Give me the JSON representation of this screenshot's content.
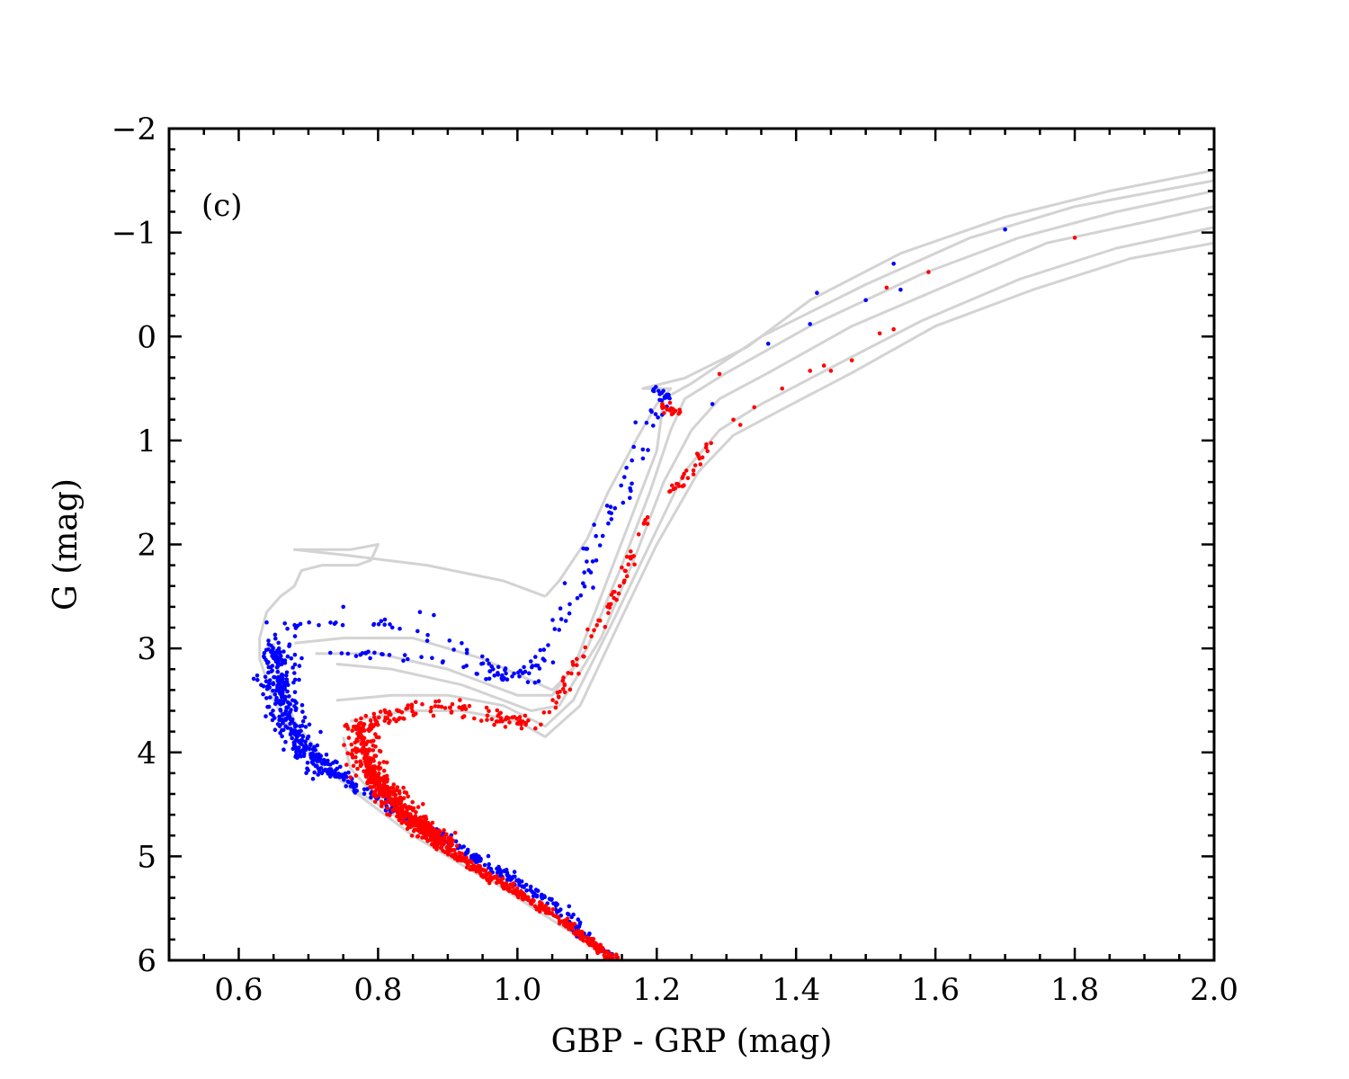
{
  "chart_data": {
    "type": "scatter",
    "panel_label": "(c)",
    "xlabel": "GBP - GRP (mag)",
    "ylabel": "G (mag)",
    "xlim": [
      0.5,
      2.0
    ],
    "ylim": [
      6,
      -2
    ],
    "y_inverted": true,
    "x_major_ticks": [
      0.6,
      0.8,
      1.0,
      1.2,
      1.4,
      1.6,
      1.8,
      2.0
    ],
    "x_tick_labels": [
      "0.6",
      "0.8",
      "1.0",
      "1.2",
      "1.4",
      "1.6",
      "1.8",
      "2.0"
    ],
    "y_major_ticks": [
      -2,
      -1,
      0,
      1,
      2,
      3,
      4,
      5,
      6
    ],
    "y_tick_labels": [
      "−2",
      "−1",
      "0",
      "1",
      "2",
      "3",
      "4",
      "5",
      "6"
    ],
    "grid": false,
    "colors": {
      "blue": "#0000ff",
      "red": "#ff0000",
      "isochrone": "#d3d3d3",
      "axes": "#000000"
    },
    "isochrones": [
      {
        "name": "isochrone-1",
        "points": [
          [
            1.04,
            2.5
          ],
          [
            0.98,
            2.35
          ],
          [
            0.87,
            2.2
          ],
          [
            0.75,
            2.1
          ],
          [
            0.68,
            2.05
          ],
          [
            0.76,
            2.05
          ],
          [
            0.8,
            2.0
          ],
          [
            0.79,
            2.15
          ],
          [
            0.77,
            2.2
          ],
          [
            0.72,
            2.2
          ],
          [
            0.69,
            2.25
          ],
          [
            0.68,
            2.4
          ],
          [
            0.66,
            2.5
          ],
          [
            0.64,
            2.65
          ],
          [
            0.63,
            2.9
          ],
          [
            0.63,
            3.1
          ],
          [
            0.65,
            3.5
          ],
          [
            0.68,
            3.85
          ],
          [
            0.73,
            4.2
          ],
          [
            0.8,
            4.5
          ],
          [
            0.9,
            4.95
          ],
          [
            1.0,
            5.4
          ],
          [
            1.14,
            6.0
          ]
        ]
      },
      {
        "name": "isochrone-2",
        "points": [
          [
            1.04,
            2.5
          ],
          [
            1.06,
            2.35
          ],
          [
            1.08,
            2.15
          ],
          [
            1.1,
            1.95
          ],
          [
            1.13,
            1.5
          ],
          [
            1.17,
            1.0
          ],
          [
            1.2,
            0.65
          ],
          [
            1.22,
            0.5
          ],
          [
            1.18,
            0.5
          ],
          [
            1.24,
            0.4
          ],
          [
            1.33,
            0.1
          ],
          [
            1.42,
            -0.35
          ],
          [
            1.55,
            -0.8
          ],
          [
            1.7,
            -1.15
          ],
          [
            1.85,
            -1.4
          ],
          [
            2.0,
            -1.6
          ]
        ]
      },
      {
        "name": "isochrone-3",
        "points": [
          [
            0.65,
            2.95
          ],
          [
            0.66,
            3.3
          ],
          [
            0.68,
            3.7
          ],
          [
            0.72,
            4.05
          ],
          [
            0.76,
            4.35
          ],
          [
            0.85,
            4.8
          ],
          [
            0.95,
            5.2
          ]
        ]
      },
      {
        "name": "isochrone-4",
        "points": [
          [
            0.68,
            2.95
          ],
          [
            0.75,
            2.9
          ],
          [
            0.85,
            2.9
          ],
          [
            0.95,
            3.1
          ],
          [
            1.05,
            3.4
          ],
          [
            1.08,
            3.2
          ],
          [
            1.12,
            2.5
          ],
          [
            1.16,
            1.8
          ],
          [
            1.2,
            1.1
          ],
          [
            1.21,
            0.6
          ],
          [
            1.25,
            0.45
          ],
          [
            1.35,
            0.0
          ],
          [
            1.5,
            -0.5
          ],
          [
            1.65,
            -0.95
          ],
          [
            1.8,
            -1.25
          ],
          [
            2.0,
            -1.5
          ]
        ]
      },
      {
        "name": "isochrone-5",
        "points": [
          [
            0.71,
            3.05
          ],
          [
            0.8,
            3.05
          ],
          [
            0.9,
            3.2
          ],
          [
            1.0,
            3.45
          ],
          [
            1.05,
            3.45
          ],
          [
            1.1,
            3.0
          ],
          [
            1.15,
            2.2
          ],
          [
            1.19,
            1.5
          ],
          [
            1.22,
            0.9
          ],
          [
            1.24,
            0.6
          ],
          [
            1.3,
            0.35
          ],
          [
            1.42,
            -0.1
          ],
          [
            1.58,
            -0.6
          ],
          [
            1.72,
            -0.95
          ],
          [
            1.86,
            -1.2
          ],
          [
            2.0,
            -1.4
          ]
        ]
      },
      {
        "name": "isochrone-6",
        "points": [
          [
            0.74,
            3.15
          ],
          [
            0.82,
            3.2
          ],
          [
            0.92,
            3.35
          ],
          [
            1.02,
            3.6
          ],
          [
            1.06,
            3.55
          ],
          [
            1.12,
            2.9
          ],
          [
            1.17,
            2.1
          ],
          [
            1.21,
            1.4
          ],
          [
            1.25,
            0.9
          ],
          [
            1.29,
            0.6
          ],
          [
            1.36,
            0.35
          ],
          [
            1.48,
            -0.1
          ],
          [
            1.62,
            -0.5
          ],
          [
            1.76,
            -0.9
          ],
          [
            1.9,
            -1.1
          ],
          [
            2.0,
            -1.25
          ]
        ]
      },
      {
        "name": "isochrone-7",
        "points": [
          [
            0.74,
            3.5
          ],
          [
            0.82,
            3.45
          ],
          [
            0.9,
            3.45
          ],
          [
            0.98,
            3.55
          ],
          [
            1.04,
            3.75
          ],
          [
            1.08,
            3.5
          ],
          [
            1.14,
            2.7
          ],
          [
            1.19,
            2.0
          ],
          [
            1.24,
            1.3
          ],
          [
            1.29,
            0.9
          ],
          [
            1.35,
            0.65
          ],
          [
            1.45,
            0.3
          ],
          [
            1.58,
            -0.15
          ],
          [
            1.72,
            -0.55
          ],
          [
            1.86,
            -0.85
          ],
          [
            2.0,
            -1.05
          ]
        ]
      },
      {
        "name": "isochrone-8",
        "points": [
          [
            0.76,
            3.7
          ],
          [
            0.84,
            3.6
          ],
          [
            0.92,
            3.6
          ],
          [
            1.0,
            3.7
          ],
          [
            1.04,
            3.85
          ],
          [
            1.09,
            3.55
          ],
          [
            1.15,
            2.7
          ],
          [
            1.2,
            2.0
          ],
          [
            1.26,
            1.3
          ],
          [
            1.31,
            0.95
          ],
          [
            1.38,
            0.7
          ],
          [
            1.48,
            0.35
          ],
          [
            1.6,
            -0.1
          ],
          [
            1.74,
            -0.45
          ],
          [
            1.88,
            -0.75
          ],
          [
            2.0,
            -0.9
          ]
        ]
      },
      {
        "name": "isochrone-9",
        "points": [
          [
            0.75,
            3.85
          ],
          [
            0.76,
            4.15
          ],
          [
            0.8,
            4.45
          ],
          [
            0.88,
            4.85
          ],
          [
            0.98,
            5.25
          ],
          [
            1.06,
            5.6
          ]
        ]
      }
    ],
    "series": [
      {
        "name": "blue-stars",
        "color": "#0000ff",
        "paths": [
          {
            "n": 360,
            "spread": 0.006,
            "points": [
              [
                0.655,
                3.0
              ],
              [
                0.66,
                3.4
              ],
              [
                0.67,
                3.7
              ],
              [
                0.7,
                4.0
              ],
              [
                0.76,
                4.3
              ],
              [
                0.85,
                4.65
              ],
              [
                0.95,
                5.05
              ],
              [
                1.05,
                5.45
              ],
              [
                1.14,
                6.0
              ]
            ]
          },
          {
            "n": 260,
            "spread": 0.014,
            "points": [
              [
                0.655,
                2.9
              ],
              [
                0.658,
                3.3
              ],
              [
                0.665,
                3.6
              ],
              [
                0.69,
                3.95
              ],
              [
                0.74,
                4.25
              ]
            ]
          },
          {
            "n": 55,
            "spread": 0.008,
            "points": [
              [
                0.66,
                2.8
              ],
              [
                0.72,
                2.75
              ],
              [
                0.8,
                2.75
              ],
              [
                0.86,
                2.85
              ],
              [
                0.9,
                2.95
              ],
              [
                0.96,
                3.15
              ],
              [
                1.0,
                3.25
              ],
              [
                1.03,
                3.15
              ],
              [
                1.04,
                2.95
              ]
            ]
          },
          {
            "n": 45,
            "spread": 0.009,
            "points": [
              [
                0.68,
                3.1
              ],
              [
                0.75,
                3.05
              ],
              [
                0.82,
                3.05
              ],
              [
                0.9,
                3.15
              ],
              [
                0.98,
                3.3
              ],
              [
                1.03,
                3.3
              ],
              [
                1.06,
                3.1
              ]
            ]
          },
          {
            "n": 40,
            "spread": 0.006,
            "points": [
              [
                1.06,
                2.9
              ],
              [
                1.09,
                2.5
              ],
              [
                1.12,
                2.0
              ],
              [
                1.15,
                1.6
              ],
              [
                1.18,
                1.2
              ],
              [
                1.2,
                0.8
              ],
              [
                1.22,
                0.4
              ]
            ]
          },
          {
            "n": 25,
            "spread": 0.007,
            "points": [
              [
                1.02,
                3.3
              ],
              [
                1.05,
                2.8
              ],
              [
                1.08,
                2.4
              ],
              [
                1.1,
                2.0
              ],
              [
                1.13,
                1.6
              ],
              [
                1.17,
                1.1
              ],
              [
                1.2,
                0.6
              ]
            ]
          },
          {
            "n": 14,
            "spread": 0.004,
            "points": [
              [
                1.19,
                0.5
              ],
              [
                1.21,
                0.55
              ],
              [
                1.22,
                0.6
              ]
            ]
          }
        ],
        "extra_points": [
          [
            0.64,
            2.75
          ],
          [
            0.75,
            2.6
          ],
          [
            0.86,
            2.65
          ],
          [
            0.88,
            2.68
          ],
          [
            0.92,
            2.95
          ],
          [
            1.28,
            0.65
          ],
          [
            1.36,
            0.07
          ],
          [
            1.42,
            -0.12
          ],
          [
            1.43,
            -0.42
          ],
          [
            1.5,
            -0.35
          ],
          [
            1.54,
            -0.7
          ],
          [
            1.55,
            -0.45
          ],
          [
            1.7,
            -1.03
          ]
        ]
      },
      {
        "name": "red-stars",
        "color": "#ff0000",
        "paths": [
          {
            "n": 460,
            "spread": 0.005,
            "points": [
              [
                0.78,
                4.05
              ],
              [
                0.82,
                4.5
              ],
              [
                0.88,
                4.85
              ],
              [
                0.96,
                5.2
              ],
              [
                1.05,
                5.55
              ],
              [
                1.14,
                6.0
              ]
            ]
          },
          {
            "n": 420,
            "spread": 0.012,
            "points": [
              [
                0.775,
                3.7
              ],
              [
                0.78,
                4.0
              ],
              [
                0.8,
                4.3
              ],
              [
                0.84,
                4.6
              ],
              [
                0.9,
                4.9
              ]
            ]
          },
          {
            "n": 75,
            "spread": 0.012,
            "points": [
              [
                0.78,
                3.75
              ],
              [
                0.85,
                3.55
              ],
              [
                0.92,
                3.55
              ],
              [
                0.98,
                3.65
              ],
              [
                1.03,
                3.8
              ]
            ]
          },
          {
            "n": 38,
            "spread": 0.009,
            "points": [
              [
                0.77,
                3.8
              ],
              [
                0.84,
                3.62
              ],
              [
                0.9,
                3.65
              ],
              [
                0.96,
                3.7
              ],
              [
                1.04,
                3.7
              ]
            ]
          },
          {
            "n": 65,
            "spread": 0.005,
            "points": [
              [
                1.04,
                3.65
              ],
              [
                1.07,
                3.3
              ],
              [
                1.1,
                3.0
              ],
              [
                1.12,
                2.7
              ],
              [
                1.15,
                2.4
              ],
              [
                1.17,
                2.0
              ],
              [
                1.19,
                1.7
              ]
            ]
          },
          {
            "n": 28,
            "spread": 0.006,
            "points": [
              [
                1.22,
                1.5
              ],
              [
                1.25,
                1.3
              ],
              [
                1.27,
                1.1
              ],
              [
                1.28,
                1.0
              ]
            ]
          },
          {
            "n": 16,
            "spread": 0.005,
            "points": [
              [
                1.21,
                0.65
              ],
              [
                1.22,
                0.75
              ],
              [
                1.23,
                0.7
              ]
            ]
          }
        ],
        "extra_points": [
          [
            1.29,
            0.36
          ],
          [
            1.31,
            0.8
          ],
          [
            1.32,
            0.85
          ],
          [
            1.34,
            0.68
          ],
          [
            1.38,
            0.5
          ],
          [
            1.42,
            0.33
          ],
          [
            1.44,
            0.28
          ],
          [
            1.45,
            0.33
          ],
          [
            1.48,
            0.23
          ],
          [
            1.52,
            -0.03
          ],
          [
            1.53,
            -0.47
          ],
          [
            1.54,
            -0.07
          ],
          [
            1.59,
            -0.62
          ],
          [
            1.8,
            -0.95
          ]
        ]
      }
    ]
  }
}
